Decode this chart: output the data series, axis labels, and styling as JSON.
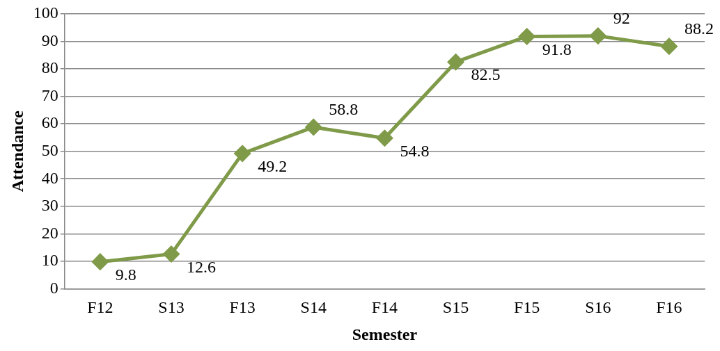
{
  "chart_data": {
    "type": "line",
    "xlabel": "Semester",
    "ylabel": "Attendance",
    "categories": [
      "F12",
      "S13",
      "F13",
      "S14",
      "F14",
      "S15",
      "F15",
      "S16",
      "F16"
    ],
    "values": [
      9.8,
      12.6,
      49.2,
      58.8,
      54.8,
      82.5,
      91.8,
      92,
      88.2
    ],
    "color": "#7f9a48",
    "ylim": [
      0,
      100
    ],
    "yticks": [
      0,
      10,
      20,
      30,
      40,
      50,
      60,
      70,
      80,
      90,
      100
    ],
    "grid": "y",
    "marker": "diamond",
    "line_style": "solid",
    "data_labels": true,
    "legend": false
  }
}
